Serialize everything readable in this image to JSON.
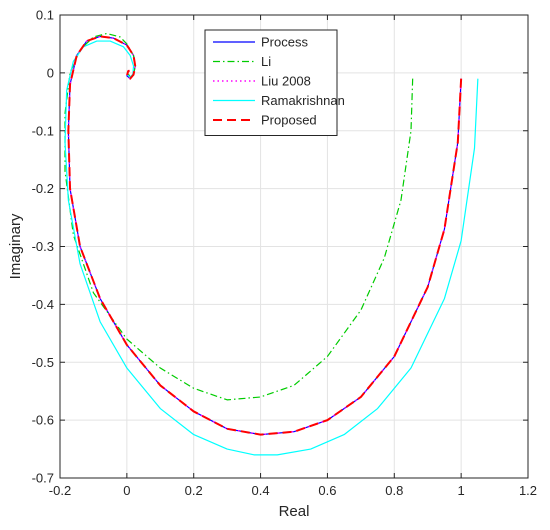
{
  "chart_data": {
    "type": "line",
    "title": "",
    "xlabel": "Real",
    "ylabel": "Imaginary",
    "xlim": [
      -0.2,
      1.2
    ],
    "ylim": [
      -0.7,
      0.1
    ],
    "xticks": [
      -0.2,
      0,
      0.2,
      0.4,
      0.6,
      0.8,
      1,
      1.2
    ],
    "xtick_labels": [
      "-0.2",
      "0",
      "0.2",
      "0.4",
      "0.6",
      "0.8",
      "1",
      "1.2"
    ],
    "yticks": [
      0.1,
      0,
      -0.1,
      -0.2,
      -0.3,
      -0.4,
      -0.5,
      -0.6,
      -0.7
    ],
    "ytick_labels": [
      "0.1",
      "0",
      "-0.1",
      "-0.2",
      "-0.3",
      "-0.4",
      "-0.5",
      "-0.6",
      "-0.7"
    ],
    "grid": true,
    "legend_position": "top-center",
    "series": [
      {
        "name": "Process",
        "color": "#0000ff",
        "dash": "solid",
        "x": [
          1.0,
          0.99,
          0.95,
          0.9,
          0.8,
          0.7,
          0.6,
          0.5,
          0.4,
          0.3,
          0.2,
          0.1,
          0.0,
          -0.08,
          -0.14,
          -0.17,
          -0.175,
          -0.17,
          -0.15,
          -0.12,
          -0.08,
          -0.04,
          0.0,
          0.02,
          0.025,
          0.02,
          0.01,
          0.0,
          0.004,
          0.008
        ],
        "y": [
          -0.01,
          -0.12,
          -0.27,
          -0.37,
          -0.49,
          -0.56,
          -0.6,
          -0.62,
          -0.625,
          -0.615,
          -0.585,
          -0.54,
          -0.47,
          -0.39,
          -0.3,
          -0.2,
          -0.1,
          -0.02,
          0.03,
          0.055,
          0.063,
          0.06,
          0.048,
          0.03,
          0.012,
          -0.003,
          -0.01,
          -0.005,
          0.003,
          0.004
        ]
      },
      {
        "name": "Li",
        "color": "#00cc00",
        "dash": "dashdot",
        "x": [
          0.855,
          0.85,
          0.82,
          0.77,
          0.7,
          0.6,
          0.5,
          0.4,
          0.3,
          0.2,
          0.1,
          0.0,
          -0.1,
          -0.16,
          -0.185,
          -0.185,
          -0.17,
          -0.14,
          -0.1,
          -0.06,
          -0.02,
          0.0,
          0.02,
          0.025,
          0.02,
          0.012,
          0.004
        ],
        "y": [
          -0.01,
          -0.1,
          -0.22,
          -0.32,
          -0.41,
          -0.49,
          -0.54,
          -0.56,
          -0.565,
          -0.545,
          -0.51,
          -0.46,
          -0.38,
          -0.28,
          -0.17,
          -0.07,
          0.0,
          0.04,
          0.062,
          0.068,
          0.062,
          0.05,
          0.03,
          0.012,
          -0.004,
          -0.008,
          -0.002
        ]
      },
      {
        "name": "Liu 2008",
        "color": "#ff00ff",
        "dash": "dotted",
        "x": [
          1.0,
          0.99,
          0.95,
          0.9,
          0.8,
          0.7,
          0.6,
          0.5,
          0.4,
          0.3,
          0.2,
          0.1,
          0.0,
          -0.08,
          -0.14,
          -0.17,
          -0.175,
          -0.17,
          -0.15,
          -0.12,
          -0.08,
          -0.04,
          0.0,
          0.02,
          0.025,
          0.02,
          0.01,
          0.0,
          0.004,
          0.008
        ],
        "y": [
          -0.01,
          -0.12,
          -0.27,
          -0.37,
          -0.49,
          -0.56,
          -0.6,
          -0.62,
          -0.625,
          -0.615,
          -0.585,
          -0.54,
          -0.47,
          -0.39,
          -0.3,
          -0.2,
          -0.1,
          -0.02,
          0.03,
          0.055,
          0.063,
          0.06,
          0.048,
          0.03,
          0.012,
          -0.003,
          -0.01,
          -0.005,
          0.003,
          0.004
        ]
      },
      {
        "name": "Ramakrishnan",
        "color": "#00ffff",
        "dash": "solid",
        "x": [
          1.05,
          1.04,
          1.0,
          0.95,
          0.85,
          0.75,
          0.65,
          0.55,
          0.45,
          0.38,
          0.3,
          0.2,
          0.1,
          0.0,
          -0.08,
          -0.14,
          -0.175,
          -0.185,
          -0.18,
          -0.16,
          -0.13,
          -0.09,
          -0.05,
          -0.01,
          0.01,
          0.02,
          0.018,
          0.01,
          0.002
        ],
        "y": [
          -0.01,
          -0.13,
          -0.29,
          -0.39,
          -0.51,
          -0.58,
          -0.625,
          -0.65,
          -0.66,
          -0.66,
          -0.65,
          -0.625,
          -0.58,
          -0.51,
          -0.43,
          -0.33,
          -0.22,
          -0.12,
          -0.03,
          0.02,
          0.045,
          0.055,
          0.055,
          0.045,
          0.03,
          0.012,
          -0.002,
          -0.008,
          -0.003
        ]
      },
      {
        "name": "Proposed",
        "color": "#ff0000",
        "dash": "dashed",
        "x": [
          1.0,
          0.99,
          0.95,
          0.9,
          0.8,
          0.7,
          0.6,
          0.5,
          0.4,
          0.3,
          0.2,
          0.1,
          0.0,
          -0.08,
          -0.14,
          -0.17,
          -0.175,
          -0.17,
          -0.15,
          -0.12,
          -0.08,
          -0.04,
          0.0,
          0.02,
          0.025,
          0.02,
          0.01,
          0.0,
          0.004,
          0.008
        ],
        "y": [
          -0.01,
          -0.12,
          -0.27,
          -0.37,
          -0.49,
          -0.56,
          -0.6,
          -0.62,
          -0.625,
          -0.615,
          -0.585,
          -0.54,
          -0.47,
          -0.39,
          -0.3,
          -0.2,
          -0.1,
          -0.02,
          0.03,
          0.055,
          0.063,
          0.06,
          0.048,
          0.03,
          0.012,
          -0.003,
          -0.01,
          -0.005,
          0.003,
          0.004
        ]
      }
    ]
  }
}
